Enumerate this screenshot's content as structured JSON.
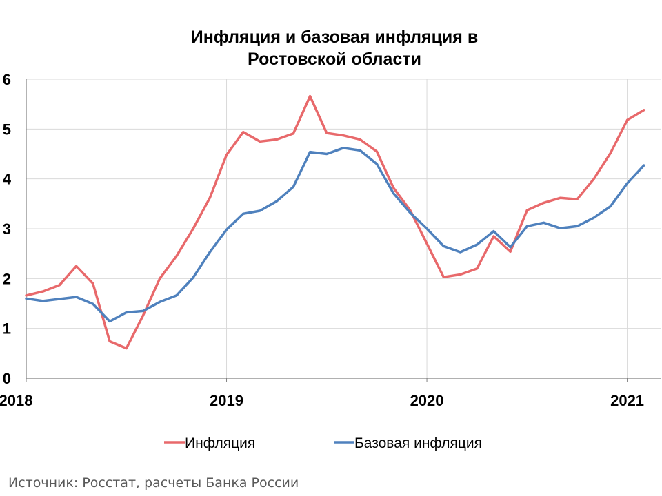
{
  "chart_data": {
    "type": "line",
    "title_lines": [
      "Инфляция и базовая инфляция в",
      "Ростовской области"
    ],
    "xlabel": "",
    "ylabel": "",
    "ylim": [
      0,
      6
    ],
    "yticks": [
      "0",
      "1",
      "2",
      "3",
      "4",
      "5",
      "6"
    ],
    "xticks": [
      {
        "label": "2018",
        "x": 0
      },
      {
        "label": "2019",
        "x": 12
      },
      {
        "label": "2020",
        "x": 24
      },
      {
        "label": "2021",
        "x": 36
      }
    ],
    "xlim": [
      0,
      38
    ],
    "grid": true,
    "legend_position": "bottom",
    "series": [
      {
        "name": "Инфляция",
        "color": "#e8696b",
        "values": [
          1.66,
          1.74,
          1.87,
          2.25,
          1.9,
          0.74,
          0.6,
          1.26,
          2.0,
          2.45,
          3.0,
          3.62,
          4.48,
          4.94,
          4.75,
          4.79,
          4.91,
          5.66,
          4.92,
          4.87,
          4.79,
          4.55,
          3.82,
          3.37,
          2.7,
          2.03,
          2.08,
          2.2,
          2.85,
          2.54,
          3.37,
          3.52,
          3.62,
          3.59,
          4.0,
          4.52,
          5.18,
          5.38
        ]
      },
      {
        "name": "Базовая инфляция",
        "color": "#4f81bd",
        "values": [
          1.6,
          1.55,
          1.59,
          1.63,
          1.49,
          1.14,
          1.32,
          1.35,
          1.53,
          1.66,
          2.02,
          2.53,
          2.98,
          3.3,
          3.36,
          3.55,
          3.84,
          4.54,
          4.5,
          4.62,
          4.57,
          4.3,
          3.71,
          3.32,
          3.0,
          2.65,
          2.53,
          2.68,
          2.95,
          2.63,
          3.05,
          3.12,
          3.01,
          3.05,
          3.22,
          3.45,
          3.91,
          4.27
        ]
      }
    ]
  },
  "source": "Источник: Росстат, расчеты Банка России"
}
